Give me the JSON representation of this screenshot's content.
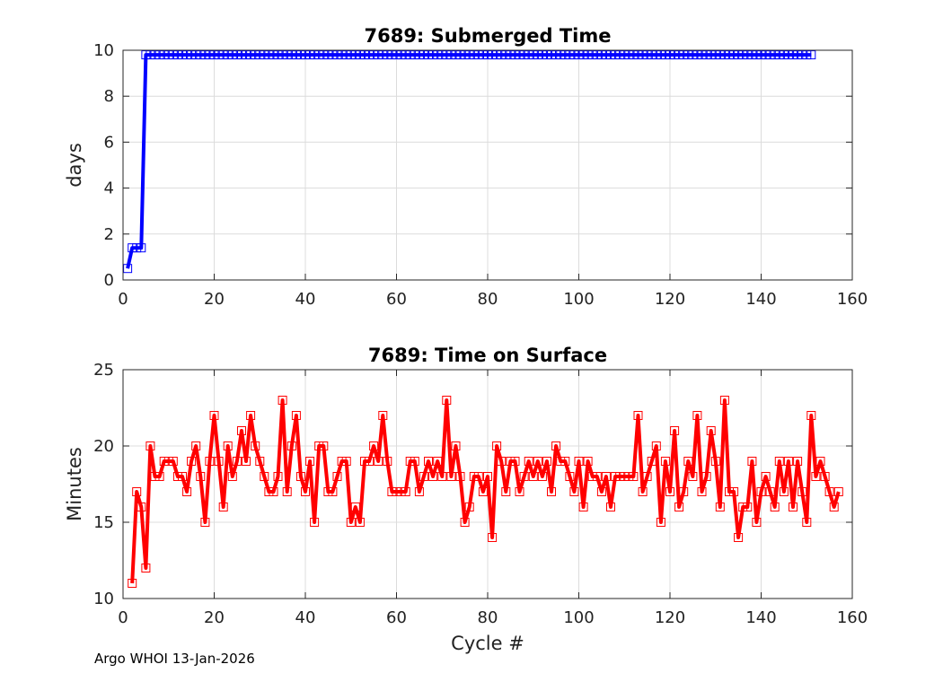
{
  "footer": "Argo WHOI 13-Jan-2026",
  "chart_data": [
    {
      "type": "line",
      "title": "7689: Submerged Time",
      "xlabel": "",
      "ylabel": "days",
      "xlim": [
        0,
        160
      ],
      "ylim": [
        0,
        10
      ],
      "xticks": [
        0,
        20,
        40,
        60,
        80,
        100,
        120,
        140,
        160
      ],
      "yticks": [
        0,
        2,
        4,
        6,
        8,
        10
      ],
      "grid": true,
      "color": "#0000ff",
      "marker": "square",
      "x_start": 1,
      "values": [
        0.5,
        1.4,
        1.4,
        1.4,
        9.8,
        9.8,
        9.8,
        9.8,
        9.8,
        9.8,
        9.8,
        9.8,
        9.8,
        9.8,
        9.8,
        9.8,
        9.8,
        9.8,
        9.8,
        9.8,
        9.8,
        9.8,
        9.8,
        9.8,
        9.8,
        9.8,
        9.8,
        9.8,
        9.8,
        9.8,
        9.8,
        9.8,
        9.8,
        9.8,
        9.8,
        9.8,
        9.8,
        9.8,
        9.8,
        9.8,
        9.8,
        9.8,
        9.8,
        9.8,
        9.8,
        9.8,
        9.8,
        9.8,
        9.8,
        9.8,
        9.8,
        9.8,
        9.8,
        9.8,
        9.8,
        9.8,
        9.8,
        9.8,
        9.8,
        9.8,
        9.8,
        9.8,
        9.8,
        9.8,
        9.8,
        9.8,
        9.8,
        9.8,
        9.8,
        9.8,
        9.8,
        9.8,
        9.8,
        9.8,
        9.8,
        9.8,
        9.8,
        9.8,
        9.8,
        9.8,
        9.8,
        9.8,
        9.8,
        9.8,
        9.8,
        9.8,
        9.8,
        9.8,
        9.8,
        9.8,
        9.8,
        9.8,
        9.8,
        9.8,
        9.8,
        9.8,
        9.8,
        9.8,
        9.8,
        9.8,
        9.8,
        9.8,
        9.8,
        9.8,
        9.8,
        9.8,
        9.8,
        9.8,
        9.8,
        9.8,
        9.8,
        9.8,
        9.8,
        9.8,
        9.8,
        9.8,
        9.8,
        9.8,
        9.8,
        9.8,
        9.8,
        9.8,
        9.8,
        9.8,
        9.8,
        9.8,
        9.8,
        9.8,
        9.8,
        9.8,
        9.8,
        9.8,
        9.8,
        9.8,
        9.8,
        9.8,
        9.8,
        9.8,
        9.8,
        9.8,
        9.8,
        9.8,
        9.8,
        9.8,
        9.8,
        9.8,
        9.8,
        9.8,
        9.8,
        9.8,
        9.8
      ]
    },
    {
      "type": "line",
      "title": "7689: Time on Surface",
      "xlabel": "Cycle #",
      "ylabel": "Minutes",
      "xlim": [
        0,
        160
      ],
      "ylim": [
        10,
        25
      ],
      "xticks": [
        0,
        20,
        40,
        60,
        80,
        100,
        120,
        140,
        160
      ],
      "yticks": [
        10,
        15,
        20,
        25
      ],
      "grid": true,
      "color": "#ff0000",
      "marker": "square",
      "x_start": 2,
      "values": [
        11,
        17,
        16,
        12,
        20,
        18,
        18,
        19,
        19,
        19,
        18,
        18,
        17,
        19,
        20,
        18,
        15,
        19,
        22,
        19,
        16,
        20,
        18,
        19,
        21,
        19,
        22,
        20,
        19,
        18,
        17,
        17,
        18,
        23,
        17,
        20,
        22,
        18,
        17,
        19,
        15,
        20,
        20,
        17,
        17,
        18,
        19,
        19,
        15,
        16,
        15,
        19,
        19,
        20,
        19,
        22,
        19,
        17,
        17,
        17,
        17,
        19,
        19,
        17,
        18,
        19,
        18,
        19,
        18,
        23,
        18,
        20,
        18,
        15,
        16,
        18,
        18,
        17,
        18,
        14,
        20,
        19,
        17,
        19,
        19,
        17,
        18,
        19,
        18,
        19,
        18,
        19,
        17,
        20,
        19,
        19,
        18,
        17,
        19,
        16,
        19,
        18,
        18,
        17,
        18,
        16,
        18,
        18,
        18,
        18,
        18,
        22,
        17,
        18,
        19,
        20,
        15,
        19,
        17,
        21,
        16,
        17,
        19,
        18,
        22,
        17,
        18,
        21,
        19,
        16,
        23,
        17,
        17,
        14,
        16,
        16,
        19,
        15,
        17,
        18,
        17,
        16,
        19,
        17,
        19,
        16,
        19,
        17,
        15,
        22,
        18,
        19,
        18,
        17,
        16,
        17
      ]
    }
  ]
}
